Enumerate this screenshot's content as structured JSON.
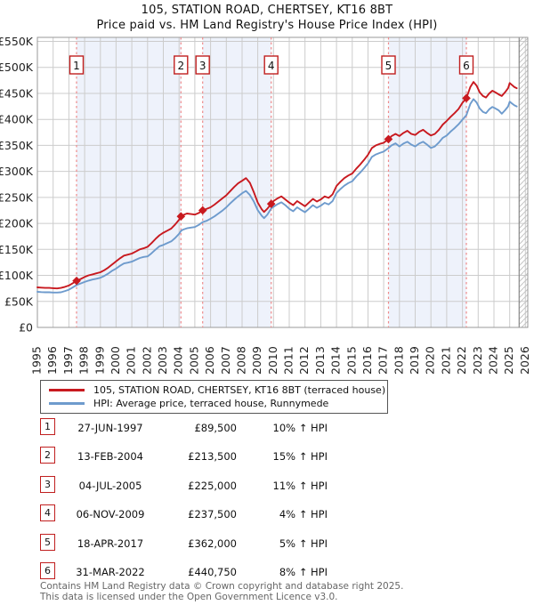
{
  "chart_data": {
    "type": "line",
    "title_line1": "105, STATION ROAD, CHERTSEY, KT16 8BT",
    "title_line2": "Price paid vs. HM Land Registry's House Price Index (HPI)",
    "grid": true,
    "legend_position": "below",
    "xlim": [
      1995,
      2026.15
    ],
    "ylim_k": [
      0,
      550
    ],
    "y_tick_labels": [
      "£0",
      "£50K",
      "£100K",
      "£150K",
      "£200K",
      "£250K",
      "£300K",
      "£350K",
      "£400K",
      "£450K",
      "£500K",
      "£550K"
    ],
    "x_tick_years": [
      1995,
      1996,
      1997,
      1998,
      1999,
      2000,
      2001,
      2002,
      2003,
      2004,
      2005,
      2006,
      2007,
      2008,
      2009,
      2010,
      2011,
      2012,
      2013,
      2014,
      2015,
      2016,
      2017,
      2018,
      2019,
      2020,
      2021,
      2022,
      2023,
      2024,
      2025,
      2026
    ],
    "future_hatch_from": 2025.6,
    "ownership_bands": [
      [
        1997.49,
        2004.12
      ],
      [
        2005.5,
        2009.85
      ],
      [
        2017.3,
        2022.25
      ]
    ],
    "band_color": "#eef2fb",
    "dashed_line_color": "#ee8a8a",
    "x": [
      1995.0,
      1995.25,
      1995.5,
      1995.75,
      1996.0,
      1996.25,
      1996.5,
      1996.75,
      1997.0,
      1997.25,
      1997.49,
      1997.75,
      1998.0,
      1998.25,
      1998.5,
      1998.75,
      1999.0,
      1999.25,
      1999.5,
      1999.75,
      2000.0,
      2000.25,
      2000.5,
      2000.75,
      2001.0,
      2001.25,
      2001.5,
      2001.75,
      2002.0,
      2002.25,
      2002.5,
      2002.75,
      2003.0,
      2003.25,
      2003.5,
      2003.75,
      2004.0,
      2004.12,
      2004.25,
      2004.5,
      2004.75,
      2005.0,
      2005.25,
      2005.5,
      2005.75,
      2006.0,
      2006.25,
      2006.5,
      2006.75,
      2007.0,
      2007.25,
      2007.5,
      2007.75,
      2008.0,
      2008.25,
      2008.5,
      2008.75,
      2009.0,
      2009.25,
      2009.4,
      2009.6,
      2009.85,
      2010.0,
      2010.25,
      2010.5,
      2010.75,
      2011.0,
      2011.25,
      2011.5,
      2011.75,
      2012.0,
      2012.25,
      2012.5,
      2012.75,
      2013.0,
      2013.25,
      2013.5,
      2013.75,
      2014.0,
      2014.25,
      2014.5,
      2014.75,
      2015.0,
      2015.25,
      2015.5,
      2015.75,
      2016.0,
      2016.25,
      2016.5,
      2016.75,
      2017.0,
      2017.3,
      2017.5,
      2017.75,
      2018.0,
      2018.25,
      2018.5,
      2018.75,
      2019.0,
      2019.25,
      2019.5,
      2019.75,
      2020.0,
      2020.25,
      2020.5,
      2020.75,
      2021.0,
      2021.25,
      2021.5,
      2021.75,
      2022.0,
      2022.25,
      2022.5,
      2022.7,
      2022.9,
      2023.1,
      2023.3,
      2023.5,
      2023.7,
      2023.9,
      2024.1,
      2024.3,
      2024.5,
      2024.7,
      2024.9,
      2025.0,
      2025.15,
      2025.3,
      2025.45
    ],
    "series": [
      {
        "name": "105, STATION ROAD, CHERTSEY, KT16 8BT (terraced house)",
        "color": "#c8191f",
        "values_k": [
          77,
          76.5,
          76,
          76,
          75.5,
          75,
          76,
          78,
          80.5,
          85,
          89.5,
          93,
          97,
          100,
          102,
          104,
          106,
          110,
          115,
          121,
          127,
          133,
          138,
          140,
          142,
          146,
          150,
          152,
          155,
          162,
          170,
          177,
          182,
          186,
          190,
          198,
          207,
          213.5,
          216,
          219,
          218,
          217,
          220,
          225,
          228,
          231,
          236,
          242,
          248,
          254,
          262,
          270,
          277,
          282,
          287,
          278,
          260,
          240,
          227,
          222,
          228,
          237.5,
          243,
          248,
          252,
          246,
          240,
          235,
          243,
          238,
          233,
          240,
          247,
          242,
          246,
          252,
          249,
          256,
          272,
          280,
          287,
          292,
          296,
          305,
          313,
          322,
          332,
          345,
          350,
          353,
          355,
          362,
          368,
          372,
          368,
          374,
          378,
          372,
          370,
          376,
          380,
          374,
          369,
          372,
          380,
          390,
          397,
          405,
          412,
          420,
          432,
          440.75,
          462,
          472,
          465,
          452,
          445,
          442,
          450,
          455,
          452,
          448,
          445,
          452,
          460,
          470,
          466,
          462,
          460
        ]
      },
      {
        "name": "HPI: Average price, terraced house, Runnymede",
        "color": "#6e9bcd",
        "values_k": [
          68.5,
          68,
          67.5,
          67.5,
          67,
          67,
          67.5,
          70,
          72.5,
          77,
          81.5,
          84.5,
          87.5,
          90,
          92,
          93.5,
          95.5,
          99,
          103.5,
          109,
          113,
          118.5,
          123,
          124.5,
          126.5,
          130,
          133.5,
          135.5,
          136.5,
          142.5,
          149.5,
          156,
          158.5,
          162,
          165.5,
          172,
          180,
          185.5,
          188,
          190.5,
          192,
          193,
          197,
          202.5,
          205,
          209,
          213.5,
          219,
          224.5,
          231,
          238.5,
          245.5,
          252,
          258,
          262.5,
          254.5,
          242,
          225.5,
          214.5,
          210,
          216.5,
          228.5,
          232,
          237,
          240.5,
          235,
          228,
          223.5,
          231,
          226,
          221.5,
          228,
          235,
          230,
          234,
          239.5,
          236.5,
          243,
          258.5,
          266,
          272.5,
          277.5,
          281,
          290,
          297.5,
          306,
          315.5,
          328,
          332.5,
          335.5,
          338,
          344.8,
          350,
          354,
          348,
          353.5,
          357,
          351.5,
          348,
          353.5,
          357,
          351.5,
          345,
          348,
          355.5,
          364.5,
          369,
          376.5,
          383,
          390.5,
          399.5,
          408,
          429.5,
          439,
          432.5,
          421,
          414.5,
          412,
          419.5,
          424,
          421,
          417.5,
          411,
          417.5,
          425,
          434,
          430.5,
          427,
          425
        ]
      }
    ],
    "sales": [
      {
        "n": "1",
        "x": 1997.49,
        "price_k": 89.5,
        "date": "27-JUN-1997",
        "price": "£89,500",
        "hpi_diff": "10% ↑ HPI"
      },
      {
        "n": "2",
        "x": 2004.12,
        "price_k": 213.5,
        "date": "13-FEB-2004",
        "price": "£213,500",
        "hpi_diff": "15% ↑ HPI"
      },
      {
        "n": "3",
        "x": 2005.5,
        "price_k": 225,
        "date": "04-JUL-2005",
        "price": "£225,000",
        "hpi_diff": "11% ↑ HPI"
      },
      {
        "n": "4",
        "x": 2009.85,
        "price_k": 237.5,
        "date": "06-NOV-2009",
        "price": "£237,500",
        "hpi_diff": "4% ↑ HPI"
      },
      {
        "n": "5",
        "x": 2017.3,
        "price_k": 362,
        "date": "18-APR-2017",
        "price": "£362,000",
        "hpi_diff": "5% ↑ HPI"
      },
      {
        "n": "6",
        "x": 2022.25,
        "price_k": 440.75,
        "date": "31-MAR-2022",
        "price": "£440,750",
        "hpi_diff": "8% ↑ HPI"
      }
    ]
  },
  "footer": {
    "line1": "Contains HM Land Registry data © Crown copyright and database right 2025.",
    "line2": "This data is licensed under the Open Government Licence v3.0."
  }
}
